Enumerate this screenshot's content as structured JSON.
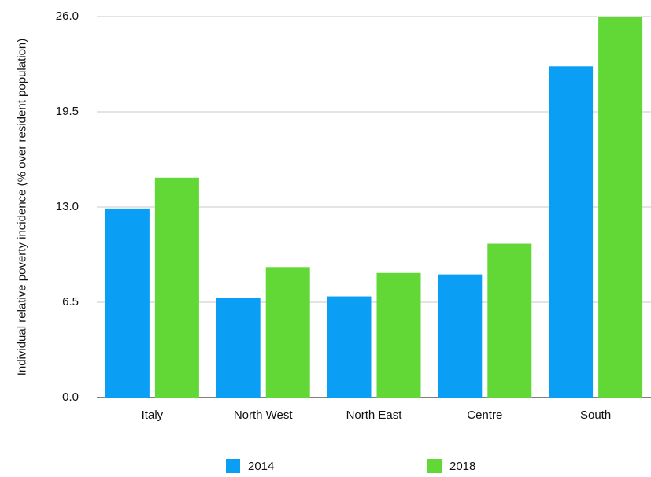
{
  "chart_data": {
    "type": "bar",
    "y_label": "Individual relative poverty incidence (% over resident population)",
    "categories": [
      "Italy",
      "North West",
      "North East",
      "Centre",
      "South"
    ],
    "series": [
      {
        "name": "2014",
        "color": "#0a9ff5",
        "values": [
          12.9,
          6.8,
          6.9,
          8.4,
          22.6
        ]
      },
      {
        "name": "2018",
        "color": "#62d836",
        "values": [
          15.0,
          8.9,
          8.5,
          10.5,
          26.0
        ]
      }
    ],
    "ylim": [
      0,
      26
    ],
    "yticks": [
      {
        "value": 0,
        "label": "0.0"
      },
      6.5,
      {
        "value": 13,
        "label": "13.0"
      },
      19.5,
      {
        "value": 26,
        "label": "26.0"
      }
    ],
    "grid": true
  }
}
